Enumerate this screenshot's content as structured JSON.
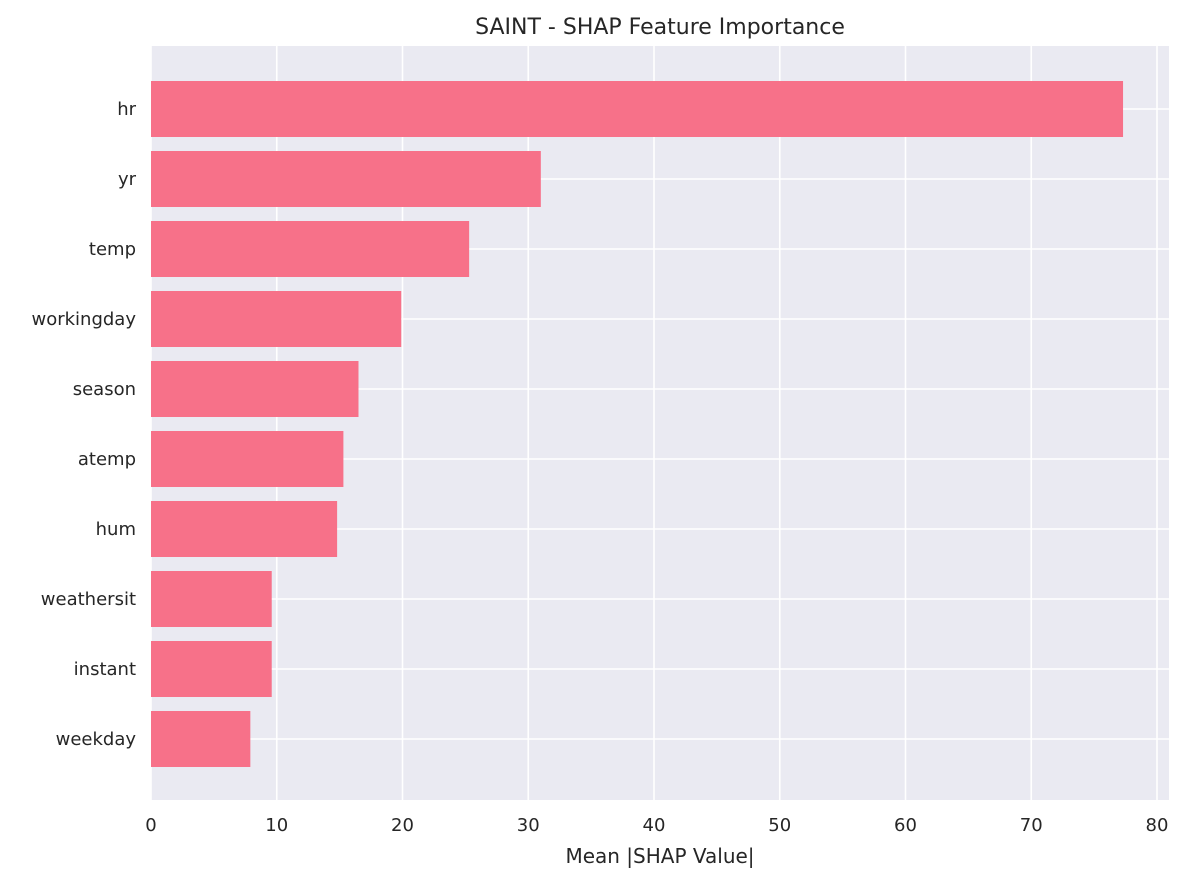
{
  "chart_data": {
    "type": "bar",
    "orientation": "horizontal",
    "title": "SAINT - SHAP Feature Importance",
    "xlabel": "Mean |SHAP Value|",
    "ylabel": "",
    "xlim": [
      0,
      81
    ],
    "xticks": [
      0,
      10,
      20,
      30,
      40,
      50,
      60,
      70,
      80
    ],
    "grid": true,
    "categories": [
      "hr",
      "yr",
      "temp",
      "workingday",
      "season",
      "atemp",
      "hum",
      "weathersit",
      "instant",
      "weekday"
    ],
    "values": [
      77.3,
      31.0,
      25.3,
      19.9,
      16.5,
      15.3,
      14.8,
      9.6,
      9.6,
      7.9
    ],
    "colors": {
      "bar": "#f77189",
      "plot_background": "#eaeaf2",
      "grid": "#ffffff",
      "text": "#262626"
    }
  }
}
